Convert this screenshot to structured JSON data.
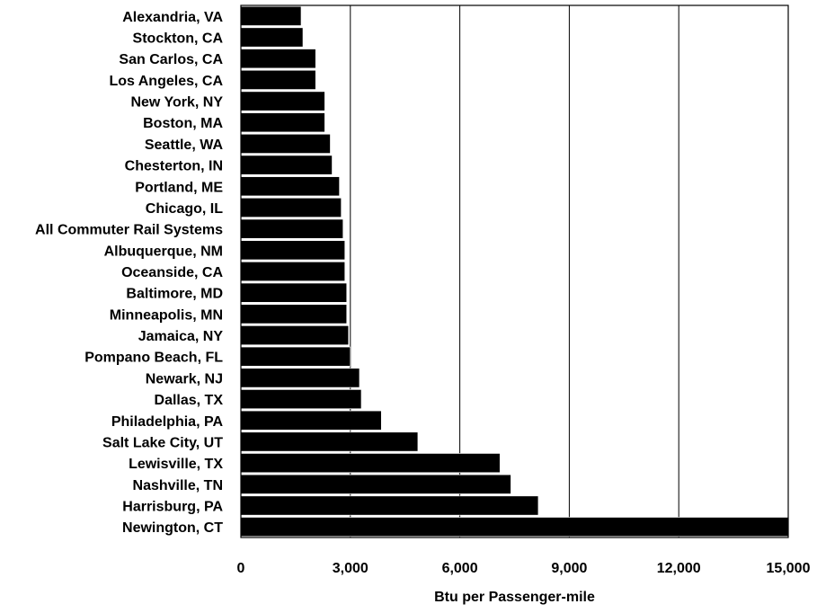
{
  "chart_data": {
    "type": "bar",
    "orientation": "horizontal",
    "categories": [
      "Alexandria, VA",
      "Stockton, CA",
      "San Carlos, CA",
      "Los Angeles, CA",
      "New York, NY",
      "Boston, MA",
      "Seattle, WA",
      "Chesterton, IN",
      "Portland, ME",
      "Chicago, IL",
      "All Commuter Rail Systems",
      "Albuquerque, NM",
      "Oceanside, CA",
      "Baltimore, MD",
      "Minneapolis, MN",
      "Jamaica, NY",
      "Pompano Beach, FL",
      "Newark, NJ",
      "Dallas, TX",
      "Philadelphia, PA",
      "Salt Lake City, UT",
      "Lewisville, TX",
      "Nashville, TN",
      "Harrisburg, PA",
      "Newington, CT"
    ],
    "values": [
      1650,
      1700,
      2050,
      2050,
      2300,
      2300,
      2450,
      2500,
      2700,
      2750,
      2800,
      2850,
      2850,
      2900,
      2900,
      2950,
      3000,
      3250,
      3300,
      3850,
      4850,
      7100,
      7400,
      8150,
      15000
    ],
    "xlabel": "Btu per Passenger-mile",
    "ylabel": "",
    "title": "",
    "xlim": [
      0,
      15000
    ],
    "xticks": [
      0,
      3000,
      6000,
      9000,
      12000,
      15000
    ],
    "xtick_labels": [
      "0",
      "3,000",
      "6,000",
      "9,000",
      "12,000",
      "15,000"
    ],
    "grid": "vertical",
    "bar_color": "#000000",
    "bar_edge_color": "#ffffff"
  }
}
